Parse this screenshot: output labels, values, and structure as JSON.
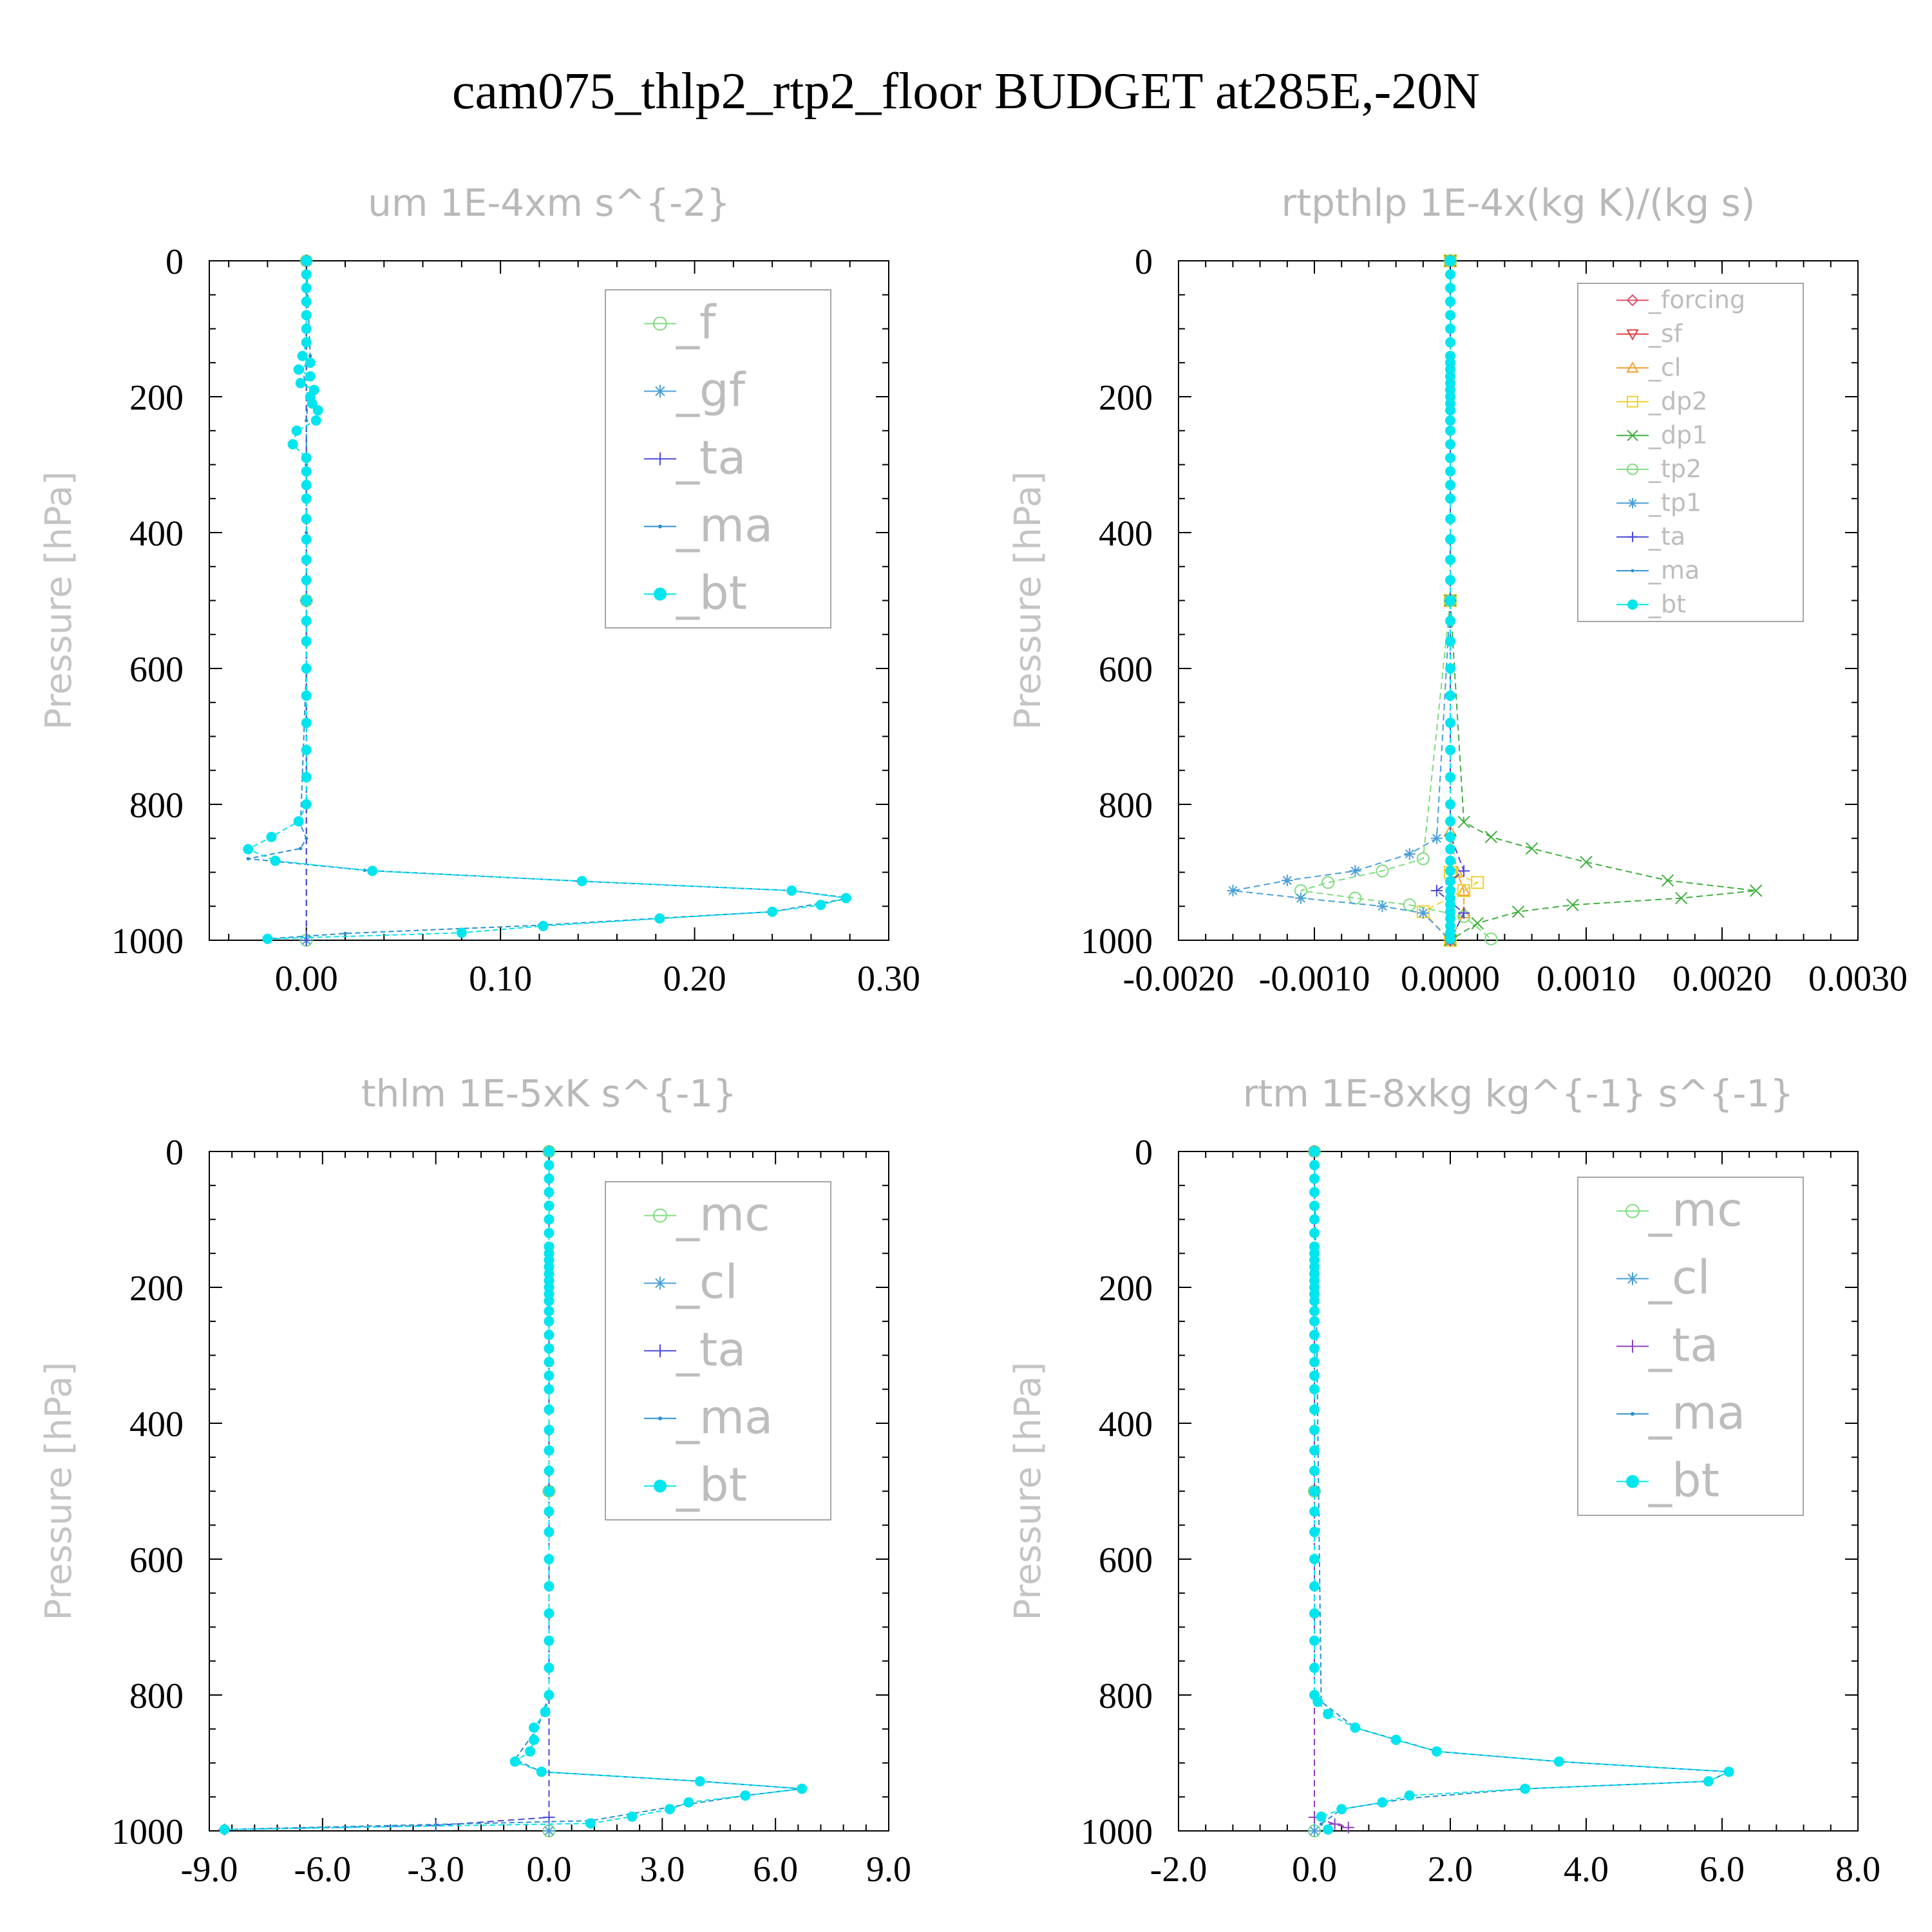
{
  "figure": {
    "title": "cam075_thlp2_rtp2_floor  BUDGET at285E,-20N"
  },
  "chart_data": [
    {
      "type": "line",
      "title": "um  1E-4xm s^{-2}",
      "ylabel": "Pressure [hPa]",
      "xlabel": "",
      "xlim": [
        -0.05,
        0.3
      ],
      "ylim": [
        1000,
        0
      ],
      "xticks": [
        "0.00",
        "0.10",
        "0.20",
        "0.30"
      ],
      "yticks": [
        "0",
        "200",
        "400",
        "600",
        "800",
        "1000"
      ],
      "legend_placement": "top-right",
      "series": [
        {
          "name": "_f",
          "color": "#7fdc7f",
          "marker": "circle-open",
          "x": [
            0,
            0,
            0
          ],
          "y": [
            0,
            500,
            1000
          ]
        },
        {
          "name": "_gf",
          "color": "#4aa0d8",
          "marker": "star",
          "x": [
            0,
            0,
            0
          ],
          "y": [
            0,
            500,
            1000
          ]
        },
        {
          "name": "_ta",
          "color": "#4a4ad8",
          "marker": "plus",
          "x": [
            0,
            0,
            0
          ],
          "y": [
            0,
            500,
            1000
          ]
        },
        {
          "name": "_ma",
          "color": "#2a8fd0",
          "marker": "dot",
          "x": [
            0,
            0.002,
            -0.002,
            0.001,
            0,
            0,
            0,
            0,
            0,
            -0.003,
            0,
            -0.003,
            -0.03,
            0.03,
            0.14,
            0.25,
            0.28,
            0.24,
            0.12,
            0.02,
            -0.02
          ],
          "y": [
            0,
            140,
            160,
            200,
            235,
            300,
            400,
            500,
            600,
            830,
            850,
            865,
            880,
            897,
            913,
            927,
            938,
            958,
            978,
            990,
            998
          ]
        },
        {
          "name": "_bt",
          "color": "#00e5ee",
          "marker": "filled-circle",
          "x": [
            0,
            0,
            0,
            0,
            0,
            0,
            0,
            -0.002,
            0.002,
            -0.004,
            0.002,
            -0.003,
            0.004,
            0.002,
            0.003,
            0.006,
            0.005,
            -0.005,
            -0.007,
            0,
            0,
            0,
            0,
            0,
            0,
            0,
            0,
            0,
            0,
            0,
            0,
            0,
            0,
            0,
            0,
            0,
            -0.004,
            -0.018,
            -0.03,
            -0.016,
            0.034,
            0.142,
            0.25,
            0.278,
            0.265,
            0.24,
            0.182,
            0.122,
            0.08,
            -0.02
          ],
          "y": [
            0,
            20,
            40,
            60,
            80,
            100,
            120,
            140,
            150,
            160,
            170,
            180,
            190,
            200,
            210,
            220,
            235,
            250,
            270,
            290,
            310,
            330,
            350,
            380,
            410,
            440,
            470,
            500,
            530,
            560,
            600,
            640,
            680,
            720,
            760,
            800,
            825,
            848,
            866,
            883,
            898,
            913,
            927,
            938,
            948,
            958,
            968,
            979,
            989,
            998
          ]
        }
      ]
    },
    {
      "type": "line",
      "title": "rtpthlp  1E-4x(kg K)/(kg s)",
      "ylabel": "Pressure [hPa]",
      "xlabel": "",
      "xlim": [
        -0.002,
        0.003
      ],
      "ylim": [
        1000,
        0
      ],
      "xticks": [
        "-0.0020",
        "-0.0010",
        "0.0000",
        "0.0010",
        "0.0020",
        "0.0030"
      ],
      "yticks": [
        "0",
        "200",
        "400",
        "600",
        "800",
        "1000"
      ],
      "legend_placement": "top-right",
      "series": [
        {
          "name": "_forcing",
          "color": "#e0506a",
          "marker": "diamond-open",
          "x": [
            0,
            0,
            0
          ],
          "y": [
            0,
            500,
            1000
          ]
        },
        {
          "name": "_sf",
          "color": "#e04040",
          "marker": "triangle-down",
          "x": [
            0,
            0,
            0
          ],
          "y": [
            0,
            500,
            1000
          ]
        },
        {
          "name": "_cl",
          "color": "#f0a030",
          "marker": "triangle-up",
          "x": [
            0,
            0,
            0,
            5e-05,
            0.0001,
            0.0001,
            0
          ],
          "y": [
            0,
            500,
            840,
            900,
            927,
            960,
            1000
          ]
        },
        {
          "name": "_dp2",
          "color": "#f0d030",
          "marker": "square-open",
          "x": [
            0,
            0,
            0,
            0.0002,
            0.0001,
            -0.0002,
            0
          ],
          "y": [
            0,
            500,
            900,
            915,
            927,
            958,
            1000
          ]
        },
        {
          "name": "_dp1",
          "color": "#40b040",
          "marker": "cross",
          "x": [
            0,
            0,
            0.0001,
            0.0003,
            0.0006,
            0.001,
            0.0016,
            0.00225,
            0.0017,
            0.0009,
            0.0005,
            0.0002,
            0
          ],
          "y": [
            0,
            500,
            826,
            848,
            865,
            885,
            912,
            927,
            938,
            948,
            958,
            975,
            1000
          ]
        },
        {
          "name": "_tp2",
          "color": "#7fdc7f",
          "marker": "circle-open",
          "x": [
            0,
            0,
            -0.0002,
            -0.0005,
            -0.0009,
            -0.0011,
            -0.0007,
            -0.0003,
            0.0001,
            0.0003
          ],
          "y": [
            0,
            500,
            880,
            898,
            915,
            927,
            938,
            948,
            965,
            998
          ]
        },
        {
          "name": "_tp1",
          "color": "#4aa0d8",
          "marker": "star",
          "x": [
            0,
            0,
            -0.0001,
            -0.0003,
            -0.0007,
            -0.0012,
            -0.0016,
            -0.0011,
            -0.0005,
            -0.0002,
            0
          ],
          "y": [
            0,
            500,
            850,
            873,
            898,
            912,
            927,
            938,
            950,
            960,
            1000
          ]
        },
        {
          "name": "_ta",
          "color": "#4a4ad8",
          "marker": "plus",
          "x": [
            0,
            0,
            0,
            0.0001,
            -0.0001,
            0.0001,
            0
          ],
          "y": [
            0,
            500,
            845,
            898,
            927,
            960,
            1000
          ]
        },
        {
          "name": "_ma",
          "color": "#2a8fd0",
          "marker": "dot",
          "x": [
            0,
            0,
            0
          ],
          "y": [
            0,
            500,
            1000
          ]
        },
        {
          "name": "_bt",
          "color": "#00e5ee",
          "marker": "filled-circle",
          "x": [
            0,
            0,
            0,
            0,
            0,
            0,
            0,
            0,
            0,
            0,
            0,
            0,
            0,
            0,
            0,
            0,
            0,
            0,
            0,
            0,
            0,
            0,
            0,
            0,
            0,
            0,
            0,
            0,
            0,
            0,
            0,
            0,
            0,
            0,
            0,
            0,
            0,
            0,
            0,
            0,
            0,
            0,
            0,
            0,
            0,
            0,
            0,
            0,
            0,
            0
          ],
          "y": [
            0,
            20,
            40,
            60,
            80,
            100,
            120,
            140,
            150,
            160,
            170,
            180,
            190,
            200,
            210,
            220,
            235,
            250,
            270,
            290,
            310,
            330,
            350,
            380,
            410,
            440,
            470,
            500,
            530,
            560,
            600,
            640,
            680,
            720,
            760,
            800,
            825,
            848,
            866,
            883,
            898,
            913,
            927,
            938,
            948,
            958,
            968,
            979,
            989,
            998
          ]
        }
      ]
    },
    {
      "type": "line",
      "title": "thlm  1E-5xK s^{-1}",
      "ylabel": "Pressure [hPa]",
      "xlabel": "",
      "xlim": [
        -9,
        9
      ],
      "ylim": [
        1000,
        0
      ],
      "xticks": [
        "-9.0",
        "-6.0",
        "-3.0",
        "0.0",
        "3.0",
        "6.0",
        "9.0"
      ],
      "yticks": [
        "0",
        "200",
        "400",
        "600",
        "800",
        "1000"
      ],
      "legend_placement": "top-right",
      "series": [
        {
          "name": "_mc",
          "color": "#7fdc7f",
          "marker": "circle-open",
          "x": [
            0,
            0,
            0
          ],
          "y": [
            0,
            500,
            1000
          ]
        },
        {
          "name": "_cl",
          "color": "#4aa0d8",
          "marker": "star",
          "x": [
            0,
            0,
            0
          ],
          "y": [
            0,
            500,
            1000
          ]
        },
        {
          "name": "_ta",
          "color": "#4a4ad8",
          "marker": "plus",
          "x": [
            0,
            0,
            -3,
            -8.6
          ],
          "y": [
            0,
            980,
            992,
            998
          ]
        },
        {
          "name": "_ma",
          "color": "#2a8fd0",
          "marker": "dot",
          "x": [
            0,
            0,
            -0.3,
            -0.9,
            -0.2,
            4,
            6.7,
            5.2,
            3.2,
            1.1,
            -8.6
          ],
          "y": [
            0,
            800,
            848,
            895,
            913,
            927,
            938,
            948,
            965,
            985,
            998
          ]
        },
        {
          "name": "_bt",
          "color": "#00e5ee",
          "marker": "filled-circle",
          "x": [
            0,
            0,
            0,
            0,
            0,
            0,
            0,
            0,
            0,
            0,
            0,
            0,
            0,
            0,
            0,
            0,
            0,
            0,
            0,
            0,
            0,
            0,
            0,
            0,
            0,
            0,
            0,
            0,
            0,
            0,
            0,
            0,
            0,
            0,
            0,
            0,
            -0.1,
            -0.4,
            -0.4,
            -0.5,
            -0.9,
            -0.2,
            4.0,
            6.7,
            5.2,
            3.7,
            3.2,
            2.2,
            1.1,
            -8.6
          ],
          "y": [
            0,
            20,
            40,
            60,
            80,
            100,
            120,
            140,
            150,
            160,
            170,
            180,
            190,
            200,
            210,
            220,
            235,
            250,
            270,
            290,
            310,
            330,
            350,
            380,
            410,
            440,
            470,
            500,
            530,
            560,
            600,
            640,
            680,
            720,
            760,
            800,
            825,
            848,
            866,
            883,
            898,
            913,
            927,
            938,
            948,
            958,
            968,
            979,
            989,
            998
          ]
        }
      ]
    },
    {
      "type": "line",
      "title": "rtm  1E-8xkg kg^{-1} s^{-1}",
      "ylabel": "Pressure [hPa]",
      "xlabel": "",
      "xlim": [
        -2,
        8
      ],
      "ylim": [
        1000,
        0
      ],
      "xticks": [
        "-2.0",
        "0.0",
        "2.0",
        "4.0",
        "6.0",
        "8.0"
      ],
      "yticks": [
        "0",
        "200",
        "400",
        "600",
        "800",
        "1000"
      ],
      "legend_placement": "top-right",
      "series": [
        {
          "name": "_mc",
          "color": "#7fdc7f",
          "marker": "circle-open",
          "x": [
            0,
            0,
            0
          ],
          "y": [
            0,
            500,
            1000
          ]
        },
        {
          "name": "_cl",
          "color": "#4aa0d8",
          "marker": "star",
          "x": [
            0,
            0,
            0
          ],
          "y": [
            0,
            500,
            1000
          ]
        },
        {
          "name": "_ta",
          "color": "#9040c0",
          "marker": "plus",
          "x": [
            0,
            0,
            0.3,
            0.5
          ],
          "y": [
            0,
            980,
            990,
            995
          ]
        },
        {
          "name": "_ma",
          "color": "#2a8fd0",
          "marker": "dot",
          "x": [
            0,
            0.1,
            0.6,
            1.8,
            3.6,
            6.1,
            5.8,
            3.1,
            1.4,
            0.4,
            0.1
          ],
          "y": [
            0,
            810,
            848,
            883,
            898,
            913,
            927,
            938,
            952,
            968,
            990
          ]
        },
        {
          "name": "_bt",
          "color": "#00e5ee",
          "marker": "filled-circle",
          "x": [
            0,
            0,
            0,
            0,
            0,
            0,
            0,
            0,
            0,
            0,
            0,
            0,
            0,
            0,
            0,
            0,
            0,
            0,
            0,
            0,
            0,
            0,
            0,
            0,
            0,
            0,
            0,
            0,
            0,
            0,
            0,
            0,
            0,
            0,
            0,
            0,
            0.05,
            0.2,
            0.6,
            1.2,
            1.8,
            3.6,
            6.1,
            5.8,
            3.1,
            1.4,
            1.0,
            0.4,
            0.1,
            0.2
          ],
          "y": [
            0,
            20,
            40,
            60,
            80,
            100,
            120,
            140,
            150,
            160,
            170,
            180,
            190,
            200,
            210,
            220,
            235,
            250,
            270,
            290,
            310,
            330,
            350,
            380,
            410,
            440,
            470,
            500,
            530,
            560,
            600,
            640,
            680,
            720,
            760,
            800,
            810,
            828,
            848,
            866,
            883,
            898,
            913,
            927,
            938,
            948,
            958,
            968,
            979,
            998
          ]
        }
      ]
    }
  ]
}
